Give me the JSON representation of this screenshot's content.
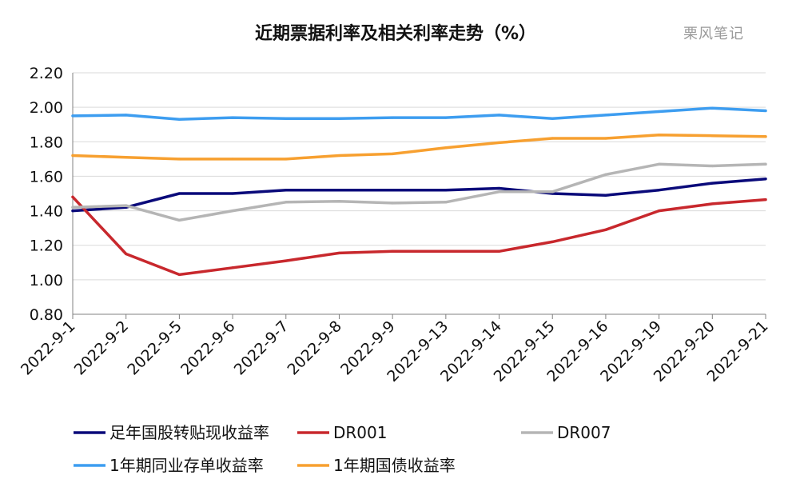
{
  "watermark": "栗风笔记",
  "colors": {
    "axis": "#808080",
    "grid": "#d9d9d9",
    "text": "#111111"
  },
  "chart_data": {
    "type": "line",
    "title": "近期票据利率及相关利率走势（%）",
    "xlabel": "",
    "ylabel": "",
    "ylim": [
      0.8,
      2.2
    ],
    "y_ticks": [
      0.8,
      1.0,
      1.2,
      1.4,
      1.6,
      1.8,
      2.0,
      2.2
    ],
    "y_tick_labels": [
      "0.80",
      "1.00",
      "1.20",
      "1.40",
      "1.60",
      "1.80",
      "2.00",
      "2.20"
    ],
    "grid": "horizontal",
    "legend_position": "bottom",
    "categories": [
      "2022-9-1",
      "2022-9-2",
      "2022-9-5",
      "2022-9-6",
      "2022-9-7",
      "2022-9-8",
      "2022-9-9",
      "2022-9-13",
      "2022-9-14",
      "2022-9-15",
      "2022-9-16",
      "2022-9-19",
      "2022-9-20",
      "2022-9-21"
    ],
    "series": [
      {
        "name": "足年国股转贴现收益率",
        "color": "#0a0a7a",
        "values": [
          1.4,
          1.42,
          1.5,
          1.5,
          1.52,
          1.52,
          1.52,
          1.52,
          1.53,
          1.5,
          1.49,
          1.52,
          1.56,
          1.585
        ]
      },
      {
        "name": "DR001",
        "color": "#c8282d",
        "values": [
          1.48,
          1.15,
          1.03,
          1.07,
          1.11,
          1.155,
          1.165,
          1.165,
          1.165,
          1.22,
          1.29,
          1.4,
          1.44,
          1.465
        ]
      },
      {
        "name": "DR007",
        "color": "#b5b5b5",
        "values": [
          1.42,
          1.43,
          1.345,
          1.4,
          1.45,
          1.455,
          1.445,
          1.45,
          1.51,
          1.51,
          1.61,
          1.67,
          1.66,
          1.67
        ]
      },
      {
        "name": "1年期同业存单收益率",
        "color": "#3d9df0",
        "values": [
          1.95,
          1.955,
          1.93,
          1.94,
          1.935,
          1.935,
          1.94,
          1.94,
          1.955,
          1.935,
          1.955,
          1.975,
          1.995,
          1.98
        ]
      },
      {
        "name": "1年期国债收益率",
        "color": "#f7a030",
        "values": [
          1.72,
          1.71,
          1.7,
          1.7,
          1.7,
          1.72,
          1.73,
          1.765,
          1.795,
          1.82,
          1.82,
          1.84,
          1.835,
          1.83
        ]
      }
    ]
  }
}
